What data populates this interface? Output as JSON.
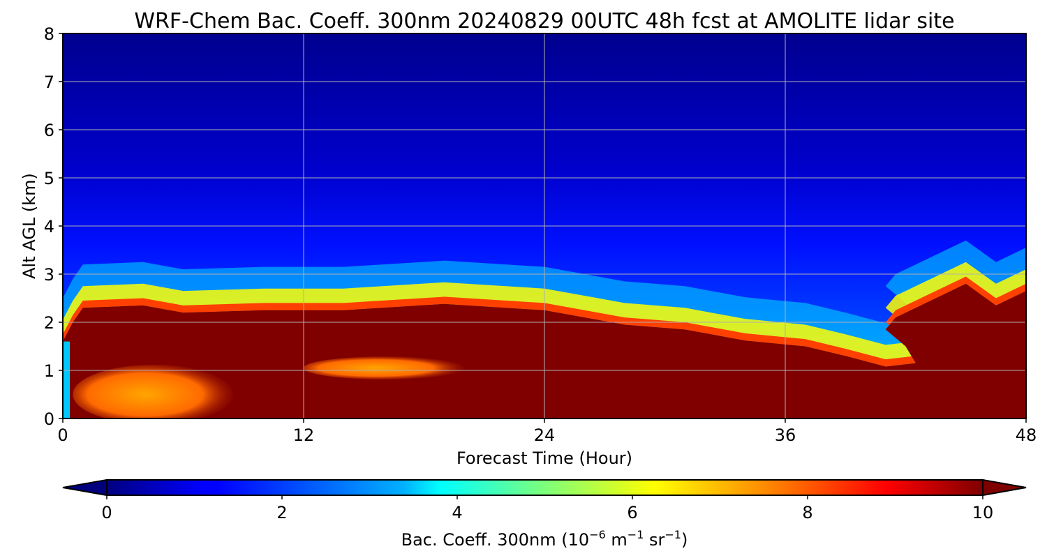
{
  "chart_data": {
    "type": "heatmap",
    "title": "WRF-Chem Bac. Coeff. 300nm  20240829 00UTC 48h fcst at AMOLITE lidar site",
    "xlabel": "Forecast Time (Hour)",
    "ylabel": "Alt AGL (km)",
    "xlim": [
      0,
      48
    ],
    "ylim": [
      0,
      8
    ],
    "xticks": [
      "0",
      "12",
      "24",
      "36",
      "48"
    ],
    "yticks": [
      "0",
      "1",
      "2",
      "3",
      "4",
      "5",
      "6",
      "7",
      "8"
    ],
    "grid": true,
    "colormap": "jet",
    "colorbar": {
      "label_prefix": "Bac. Coeff. 300nm  (10",
      "label_exp1": "−6",
      "label_mid": " m",
      "label_exp2": "−1",
      "label_mid2": " sr",
      "label_exp3": "−1",
      "label_suffix": ")",
      "range": [
        0,
        10
      ],
      "ticks": [
        "0",
        "2",
        "4",
        "6",
        "8",
        "10"
      ],
      "extend": "both",
      "orientation": "horizontal",
      "position": "bottom"
    },
    "layer_top_km": [
      [
        0,
        1.6
      ],
      [
        0.5,
        2.0
      ],
      [
        1,
        2.3
      ],
      [
        4,
        2.35
      ],
      [
        6,
        2.2
      ],
      [
        10,
        2.25
      ],
      [
        14,
        2.25
      ],
      [
        19,
        2.38
      ],
      [
        24,
        2.25
      ],
      [
        26,
        2.1
      ],
      [
        28,
        1.95
      ],
      [
        31,
        1.85
      ],
      [
        34,
        1.62
      ],
      [
        37,
        1.5
      ],
      [
        39,
        1.3
      ],
      [
        41,
        1.08
      ],
      [
        42.5,
        1.15
      ],
      [
        42,
        1.5
      ],
      [
        41,
        1.85
      ],
      [
        41.5,
        2.1
      ],
      [
        44,
        2.6
      ],
      [
        45,
        2.8
      ],
      [
        46.5,
        2.35
      ],
      [
        48,
        2.65
      ]
    ],
    "high_value_regions": [
      {
        "description_value": "~10+",
        "x_range": [
          0.5,
          48
        ],
        "y_range": [
          0,
          2.3
        ]
      }
    ],
    "low_value_regions": [
      {
        "description_value": "~8-9",
        "x_range": [
          1,
          9
        ],
        "y_range": [
          0,
          1.0
        ]
      },
      {
        "description_value": "~9",
        "x_range": [
          12,
          20
        ],
        "y_range": [
          0.9,
          1.2
        ]
      }
    ],
    "colors": {
      "axis": "#000000",
      "grid": "#b0b0b0",
      "background": "#ffffff"
    }
  }
}
